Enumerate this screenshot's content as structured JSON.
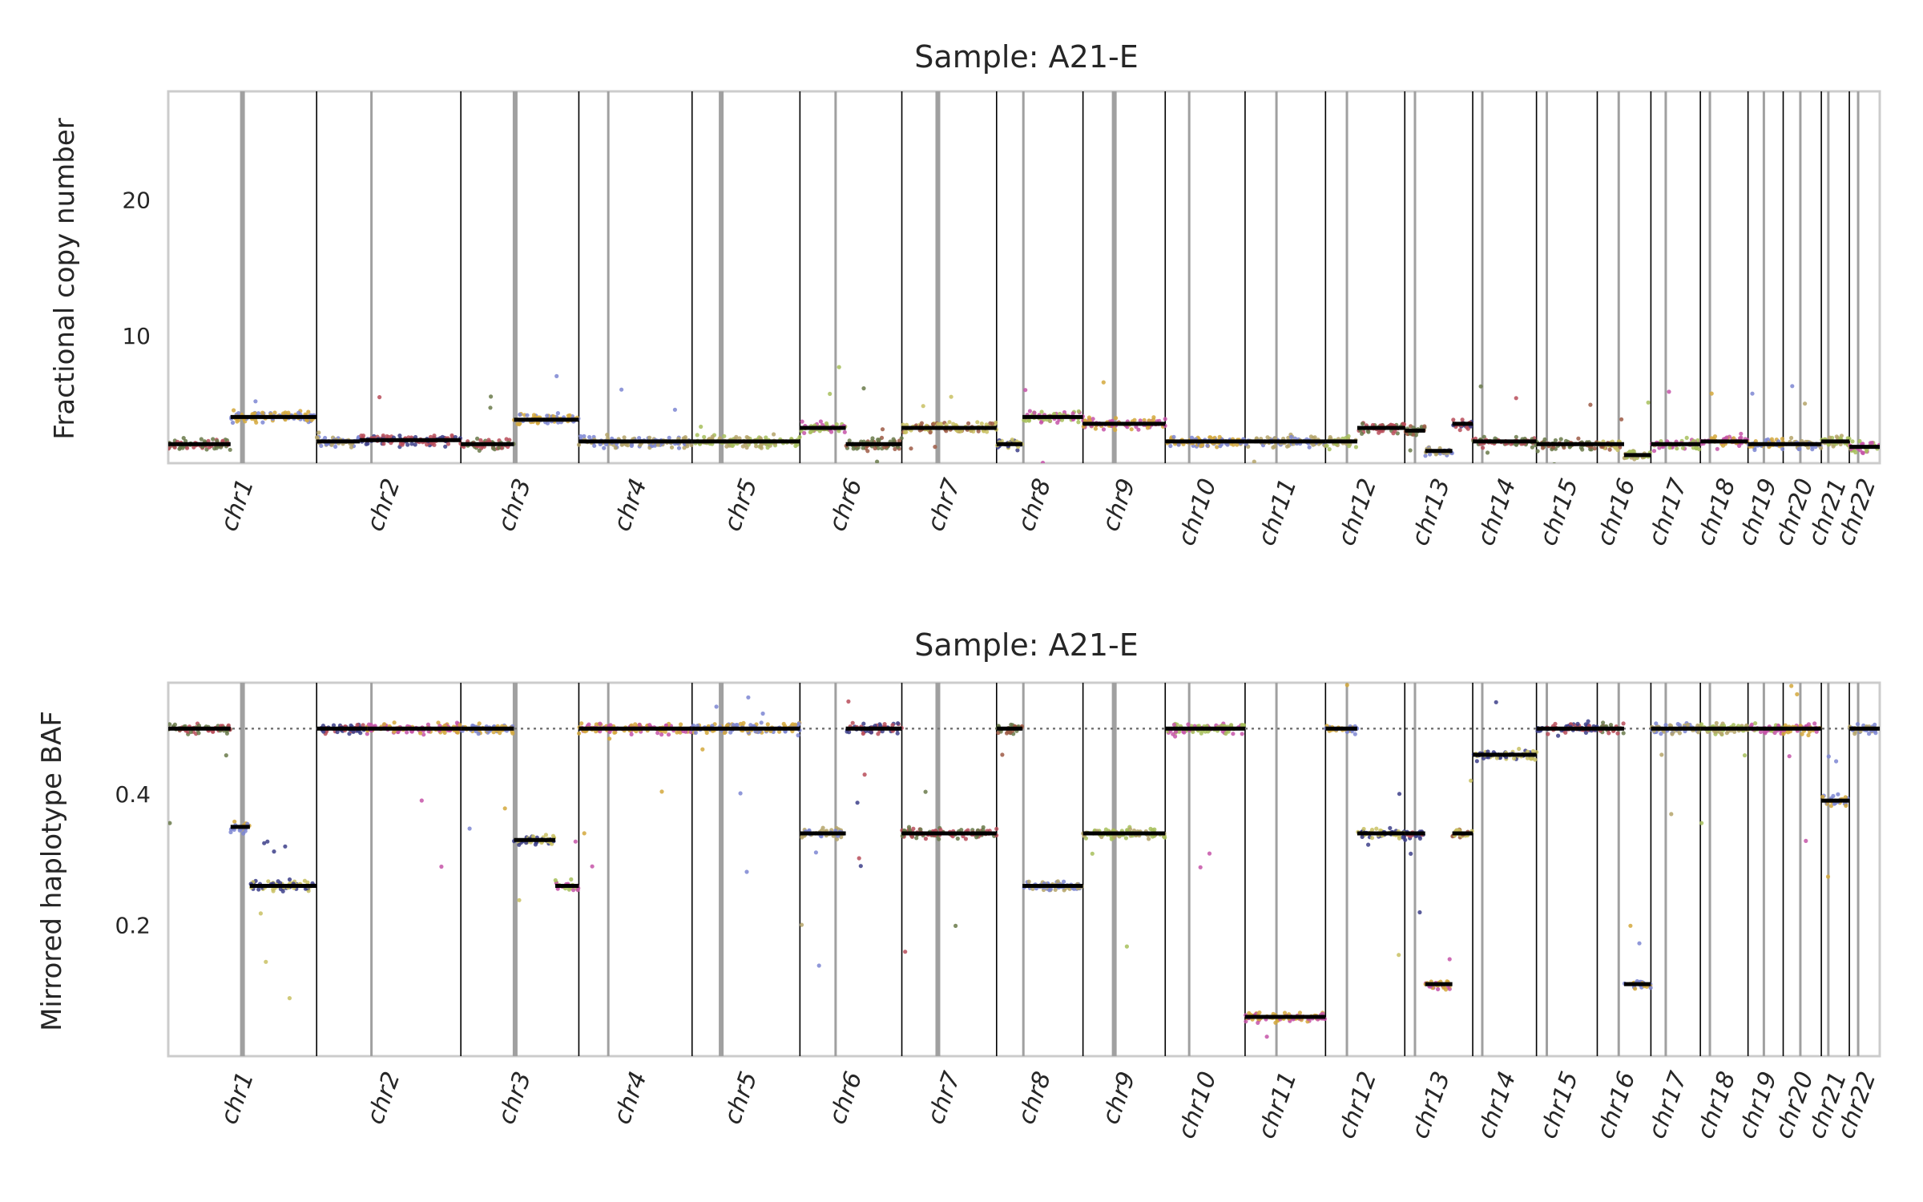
{
  "chart_data": [
    {
      "type": "scatter",
      "title": "Sample: A21-E",
      "ylabel": "Fractional copy number",
      "xlabel": "",
      "ylim": [
        0.6,
        28
      ],
      "yticks": [
        10,
        20
      ],
      "grid": false,
      "legend": "none",
      "chromosome_boundaries_pos": [
        0.04,
        0.087,
        0.165,
        0.198,
        0.229,
        0.281,
        0.316,
        0.353,
        0.377,
        0.401,
        0.431,
        0.452,
        0.466,
        0.488,
        0.5,
        0.521,
        0.543,
        0.553,
        0.575,
        0.586,
        0.593,
        0.599
      ],
      "centromere_pos": [
        0.019,
        0.058,
        0.112,
        0.179,
        0.218,
        0.245,
        0.296,
        0.335,
        0.365,
        0.392,
        0.417,
        0.44,
        0.464,
        0.488,
        0.5,
        0.513,
        0.537,
        0.548,
        0.564,
        0.58,
        0.589,
        0.596
      ],
      "series": [
        {
          "chromosomes": [
            "chr1",
            "chr2",
            "chr3",
            "chr4",
            "chr5",
            "chr6",
            "chr7",
            "chr8",
            "chr9",
            "chr10",
            "chr11",
            "chr12",
            "chr13",
            "chr14",
            "chr15",
            "chr16",
            "chr17",
            "chr18",
            "chr19",
            "chr20",
            "chr21",
            "chr22"
          ],
          "segments": [
            {
              "chr": "chr1",
              "x_frac": [
                0.0,
                0.42
              ],
              "value": 2.0
            },
            {
              "chr": "chr1",
              "x_frac": [
                0.42,
                1.0
              ],
              "value": 4.0
            },
            {
              "chr": "chr2",
              "x_frac": [
                0.0,
                0.3
              ],
              "value": 2.2
            },
            {
              "chr": "chr2",
              "x_frac": [
                0.3,
                1.0
              ],
              "value": 2.3
            },
            {
              "chr": "chr3",
              "x_frac": [
                0.0,
                0.45
              ],
              "value": 2.0
            },
            {
              "chr": "chr3",
              "x_frac": [
                0.45,
                1.0
              ],
              "value": 3.8
            },
            {
              "chr": "chr4",
              "x_frac": [
                0.0,
                1.0
              ],
              "value": 2.2
            },
            {
              "chr": "chr5",
              "x_frac": [
                0.0,
                1.0
              ],
              "value": 2.2
            },
            {
              "chr": "chr6",
              "x_frac": [
                0.0,
                0.45
              ],
              "value": 3.2
            },
            {
              "chr": "chr6",
              "x_frac": [
                0.45,
                1.0
              ],
              "value": 2.0
            },
            {
              "chr": "chr7",
              "x_frac": [
                0.0,
                1.0
              ],
              "value": 3.2
            },
            {
              "chr": "chr8",
              "x_frac": [
                0.0,
                0.3
              ],
              "value": 2.0
            },
            {
              "chr": "chr8",
              "x_frac": [
                0.3,
                1.0
              ],
              "value": 4.0
            },
            {
              "chr": "chr9",
              "x_frac": [
                0.0,
                1.0
              ],
              "value": 3.5
            },
            {
              "chr": "chr10",
              "x_frac": [
                0.0,
                1.0
              ],
              "value": 2.2
            },
            {
              "chr": "chr11",
              "x_frac": [
                0.0,
                1.0
              ],
              "value": 2.2
            },
            {
              "chr": "chr12",
              "x_frac": [
                0.0,
                0.4
              ],
              "value": 2.2
            },
            {
              "chr": "chr12",
              "x_frac": [
                0.4,
                1.0
              ],
              "value": 3.2
            },
            {
              "chr": "chr13",
              "x_frac": [
                0.0,
                0.3
              ],
              "value": 3.0
            },
            {
              "chr": "chr13",
              "x_frac": [
                0.3,
                0.7
              ],
              "value": 1.5
            },
            {
              "chr": "chr13",
              "x_frac": [
                0.7,
                1.0
              ],
              "value": 3.5
            },
            {
              "chr": "chr14",
              "x_frac": [
                0.0,
                1.0
              ],
              "value": 2.2
            },
            {
              "chr": "chr15",
              "x_frac": [
                0.0,
                1.0
              ],
              "value": 2.0
            },
            {
              "chr": "chr16",
              "x_frac": [
                0.0,
                0.5
              ],
              "value": 2.0
            },
            {
              "chr": "chr16",
              "x_frac": [
                0.5,
                1.0
              ],
              "value": 1.2
            },
            {
              "chr": "chr17",
              "x_frac": [
                0.0,
                1.0
              ],
              "value": 2.0
            },
            {
              "chr": "chr18",
              "x_frac": [
                0.0,
                1.0
              ],
              "value": 2.2
            },
            {
              "chr": "chr19",
              "x_frac": [
                0.0,
                1.0
              ],
              "value": 2.0
            },
            {
              "chr": "chr20",
              "x_frac": [
                0.0,
                1.0
              ],
              "value": 2.0
            },
            {
              "chr": "chr21",
              "x_frac": [
                0.0,
                1.0
              ],
              "value": 2.2
            },
            {
              "chr": "chr22",
              "x_frac": [
                0.0,
                1.0
              ],
              "value": 1.8
            }
          ]
        }
      ]
    },
    {
      "type": "scatter",
      "title": "Sample: A21-E",
      "ylabel": "Mirrored haplotype BAF",
      "xlabel": "",
      "ylim": [
        0.0,
        0.57
      ],
      "yticks": [
        0.2,
        0.4
      ],
      "reference_line": 0.5,
      "grid": false,
      "legend": "none",
      "series": [
        {
          "segments": [
            {
              "chr": "chr1",
              "x_frac": [
                0.0,
                0.42
              ],
              "value": 0.5
            },
            {
              "chr": "chr1",
              "x_frac": [
                0.42,
                0.55
              ],
              "value": 0.35
            },
            {
              "chr": "chr1",
              "x_frac": [
                0.55,
                1.0
              ],
              "value": 0.26
            },
            {
              "chr": "chr2",
              "x_frac": [
                0.0,
                0.35
              ],
              "value": 0.5
            },
            {
              "chr": "chr2",
              "x_frac": [
                0.35,
                1.0
              ],
              "value": 0.5
            },
            {
              "chr": "chr3",
              "x_frac": [
                0.0,
                0.45
              ],
              "value": 0.5
            },
            {
              "chr": "chr3",
              "x_frac": [
                0.45,
                0.8
              ],
              "value": 0.33
            },
            {
              "chr": "chr3",
              "x_frac": [
                0.8,
                1.0
              ],
              "value": 0.26
            },
            {
              "chr": "chr4",
              "x_frac": [
                0.0,
                1.0
              ],
              "value": 0.5
            },
            {
              "chr": "chr5",
              "x_frac": [
                0.0,
                1.0
              ],
              "value": 0.5
            },
            {
              "chr": "chr6",
              "x_frac": [
                0.0,
                0.45
              ],
              "value": 0.34
            },
            {
              "chr": "chr6",
              "x_frac": [
                0.45,
                1.0
              ],
              "value": 0.5
            },
            {
              "chr": "chr7",
              "x_frac": [
                0.0,
                1.0
              ],
              "value": 0.34
            },
            {
              "chr": "chr8",
              "x_frac": [
                0.0,
                0.3
              ],
              "value": 0.5
            },
            {
              "chr": "chr8",
              "x_frac": [
                0.3,
                1.0
              ],
              "value": 0.26
            },
            {
              "chr": "chr9",
              "x_frac": [
                0.0,
                1.0
              ],
              "value": 0.34
            },
            {
              "chr": "chr10",
              "x_frac": [
                0.0,
                1.0
              ],
              "value": 0.5
            },
            {
              "chr": "chr11",
              "x_frac": [
                0.0,
                1.0
              ],
              "value": 0.06
            },
            {
              "chr": "chr12",
              "x_frac": [
                0.0,
                0.4
              ],
              "value": 0.5
            },
            {
              "chr": "chr12",
              "x_frac": [
                0.4,
                1.0
              ],
              "value": 0.34
            },
            {
              "chr": "chr13",
              "x_frac": [
                0.0,
                0.3
              ],
              "value": 0.34
            },
            {
              "chr": "chr13",
              "x_frac": [
                0.3,
                0.7
              ],
              "value": 0.11
            },
            {
              "chr": "chr13",
              "x_frac": [
                0.7,
                1.0
              ],
              "value": 0.34
            },
            {
              "chr": "chr14",
              "x_frac": [
                0.0,
                1.0
              ],
              "value": 0.46
            },
            {
              "chr": "chr15",
              "x_frac": [
                0.0,
                1.0
              ],
              "value": 0.5
            },
            {
              "chr": "chr16",
              "x_frac": [
                0.0,
                0.5
              ],
              "value": 0.5
            },
            {
              "chr": "chr16",
              "x_frac": [
                0.5,
                1.0
              ],
              "value": 0.11
            },
            {
              "chr": "chr17",
              "x_frac": [
                0.0,
                1.0
              ],
              "value": 0.5
            },
            {
              "chr": "chr18",
              "x_frac": [
                0.0,
                1.0
              ],
              "value": 0.5
            },
            {
              "chr": "chr19",
              "x_frac": [
                0.0,
                1.0
              ],
              "value": 0.5
            },
            {
              "chr": "chr20",
              "x_frac": [
                0.0,
                1.0
              ],
              "value": 0.5
            },
            {
              "chr": "chr21",
              "x_frac": [
                0.0,
                1.0
              ],
              "value": 0.39
            },
            {
              "chr": "chr22",
              "x_frac": [
                0.0,
                1.0
              ],
              "value": 0.5
            }
          ]
        }
      ]
    }
  ],
  "chromosomes": [
    "chr1",
    "chr2",
    "chr3",
    "chr4",
    "chr5",
    "chr6",
    "chr7",
    "chr8",
    "chr9",
    "chr10",
    "chr11",
    "chr12",
    "chr13",
    "chr14",
    "chr15",
    "chr16",
    "chr17",
    "chr18",
    "chr19",
    "chr20",
    "chr21",
    "chr22"
  ],
  "chromosome_lengths_mb": [
    249,
    242,
    198,
    190,
    181,
    171,
    159,
    145,
    138,
    134,
    135,
    133,
    114,
    107,
    102,
    90,
    83,
    80,
    59,
    64,
    47,
    51
  ],
  "centromere_fraction": [
    0.5,
    0.38,
    0.46,
    0.26,
    0.27,
    0.35,
    0.38,
    0.31,
    0.38,
    0.3,
    0.39,
    0.27,
    0.15,
    0.15,
    0.17,
    0.4,
    0.3,
    0.2,
    0.45,
    0.45,
    0.25,
    0.29
  ],
  "colors": {
    "palette": [
      "#b84e5a",
      "#d4a83c",
      "#c9c163",
      "#a7bf5c",
      "#6a7a4a",
      "#7d86d2",
      "#3d3f8a",
      "#c554a8",
      "#9e5a45",
      "#b5a56a"
    ],
    "segment": "#000000",
    "boundary": "#000000",
    "centromere": "#a0a0a0",
    "axis_frame": "#cccccc",
    "reference_line": "#777777"
  }
}
